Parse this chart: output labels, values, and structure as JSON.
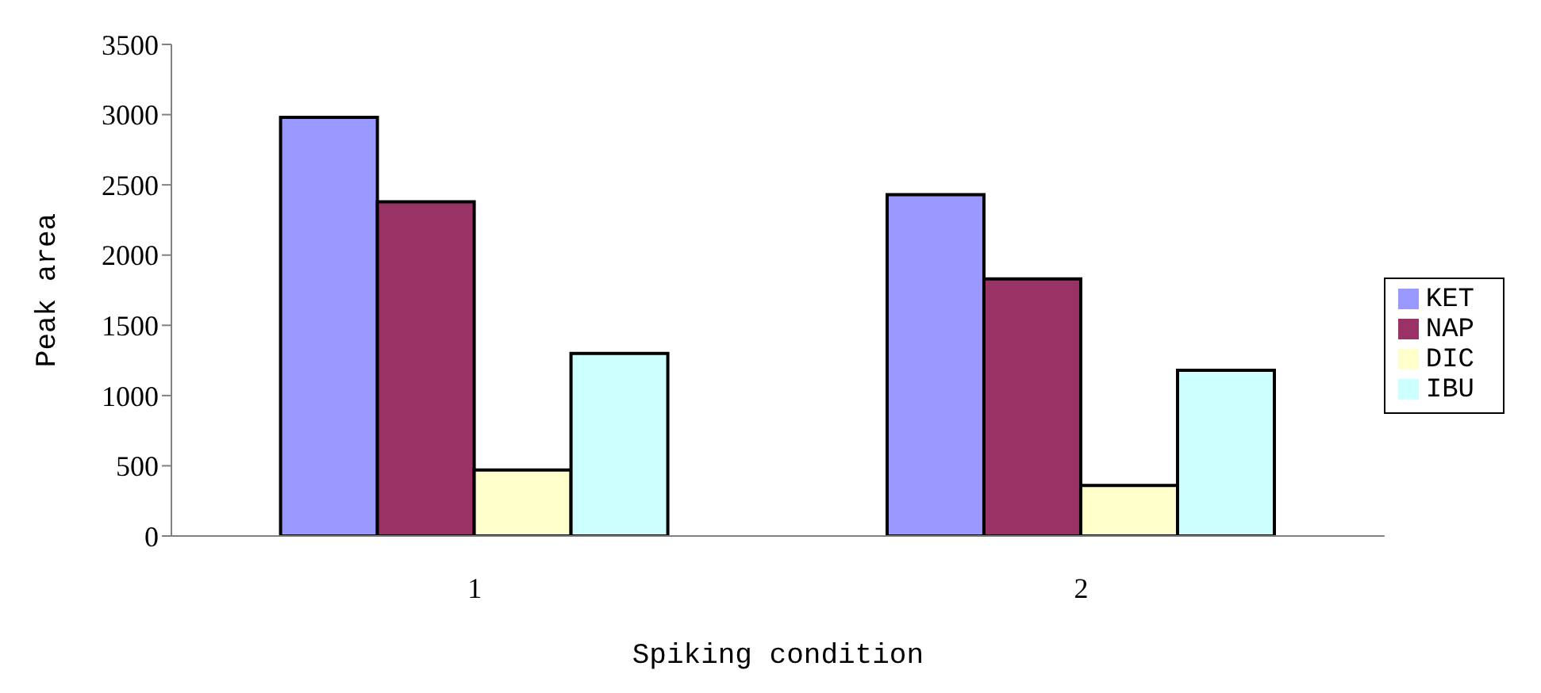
{
  "chart_data": {
    "type": "bar",
    "xlabel": "Spiking condition",
    "ylabel": "Peak area",
    "categories": [
      "1",
      "2"
    ],
    "series": [
      {
        "name": "KET",
        "color": "#9999ff",
        "values": [
          2980,
          2430
        ]
      },
      {
        "name": "NAP",
        "color": "#993366",
        "values": [
          2380,
          1830
        ]
      },
      {
        "name": "DIC",
        "color": "#ffffcc",
        "values": [
          470,
          360
        ]
      },
      {
        "name": "IBU",
        "color": "#ccffff",
        "values": [
          1300,
          1180
        ]
      }
    ],
    "ylim": [
      0,
      3500
    ],
    "yticks": [
      0,
      500,
      1000,
      1500,
      2000,
      2500,
      3000,
      3500
    ],
    "grid": false,
    "legend": "right"
  }
}
